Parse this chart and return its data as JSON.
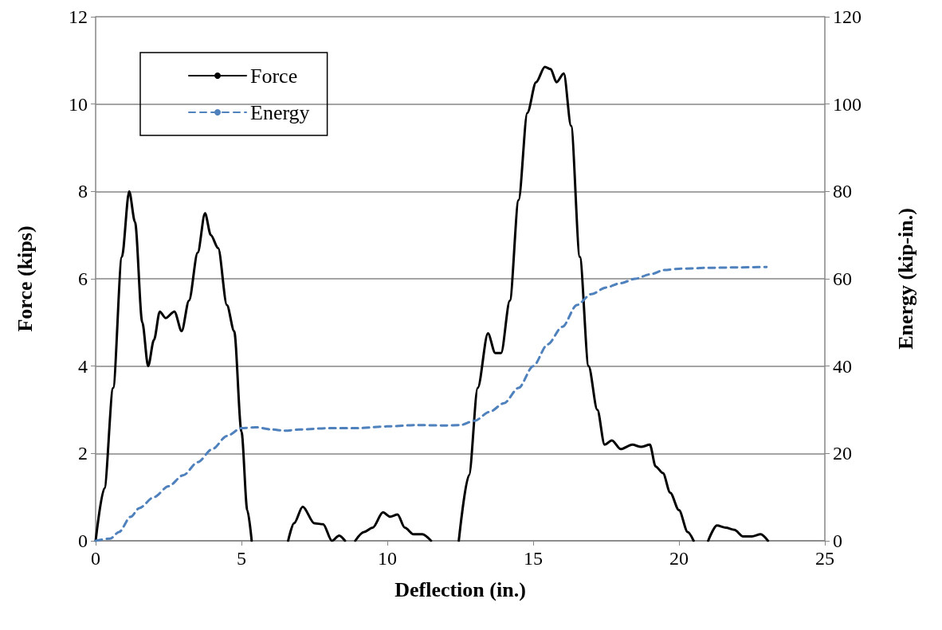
{
  "chart_data": {
    "type": "line",
    "xlabel": "Deflection (in.)",
    "ylabel": "Force (kips)",
    "y2label": "Energy (kip-in.)",
    "xlim": [
      0,
      25
    ],
    "xticks": [
      0,
      5,
      10,
      15,
      20,
      25
    ],
    "ylim": [
      0,
      12
    ],
    "yticks": [
      0,
      2,
      4,
      6,
      8,
      10,
      12
    ],
    "y2lim": [
      0,
      120
    ],
    "y2ticks": [
      0,
      20,
      40,
      60,
      80,
      100,
      120
    ],
    "grid": "y",
    "legend": "top left",
    "marker": "none",
    "series": [
      {
        "name": "Force",
        "color": "#000000",
        "line_style": "solid",
        "x": [
          0,
          0.3,
          0.6,
          0.9,
          1.15,
          1.35,
          1.6,
          1.8,
          2.0,
          2.2,
          2.4,
          2.7,
          2.95,
          3.2,
          3.5,
          3.75,
          3.95,
          4.2,
          4.5,
          4.75,
          5.0,
          5.2,
          5.35,
          6.0,
          6.6,
          6.8,
          7.1,
          7.5,
          7.8,
          8.1,
          8.35,
          8.55,
          8.7,
          8.9,
          9.2,
          9.5,
          9.85,
          10.1,
          10.35,
          10.6,
          10.9,
          11.2,
          11.5,
          12.0,
          12.45,
          12.8,
          13.1,
          13.45,
          13.7,
          13.9,
          14.2,
          14.5,
          14.8,
          15.1,
          15.4,
          15.6,
          15.8,
          16.05,
          16.3,
          16.6,
          16.9,
          17.2,
          17.45,
          17.7,
          18.0,
          18.4,
          18.7,
          19.0,
          19.2,
          19.45,
          19.7,
          20.0,
          20.3,
          20.5,
          20.8,
          21.0,
          21.3,
          21.6,
          21.9,
          22.2,
          22.5,
          22.8,
          23.05
        ],
        "values": [
          0,
          1.2,
          3.5,
          6.5,
          8.0,
          7.3,
          5.0,
          4.0,
          4.6,
          5.25,
          5.1,
          5.25,
          4.8,
          5.5,
          6.6,
          7.5,
          7.0,
          6.7,
          5.4,
          4.8,
          2.5,
          0.7,
          0,
          null,
          0,
          0.4,
          0.78,
          0.4,
          0.38,
          0,
          0.12,
          0,
          null,
          0,
          0.2,
          0.3,
          0.65,
          0.55,
          0.6,
          0.3,
          0.15,
          0.15,
          0,
          null,
          0,
          1.5,
          3.5,
          4.75,
          4.3,
          4.3,
          5.5,
          7.8,
          9.8,
          10.5,
          10.85,
          10.8,
          10.5,
          10.7,
          9.5,
          6.5,
          4.0,
          3.0,
          2.2,
          2.3,
          2.1,
          2.2,
          2.15,
          2.2,
          1.7,
          1.55,
          1.1,
          0.7,
          0.2,
          0,
          null,
          0,
          0.35,
          0.3,
          0.25,
          0.1,
          0.1,
          0.15,
          0
        ]
      },
      {
        "name": "Energy",
        "color": "#4f81bd",
        "line_style": "dashed",
        "axis": "y2",
        "x": [
          0,
          0.5,
          0.8,
          1.2,
          1.5,
          2,
          2.5,
          3,
          3.5,
          4,
          4.5,
          5,
          5.5,
          6,
          6.5,
          7,
          8,
          9,
          10,
          11,
          12,
          12.5,
          13,
          13.5,
          14,
          14.5,
          15,
          15.5,
          16,
          16.5,
          17,
          17.5,
          18,
          18.5,
          19,
          19.5,
          20,
          21,
          22,
          23
        ],
        "values": [
          0,
          0.5,
          2,
          5.5,
          7.5,
          10,
          12.5,
          15,
          18,
          21,
          24,
          25.8,
          26,
          25.5,
          25.2,
          25.5,
          25.8,
          25.8,
          26.2,
          26.5,
          26.4,
          26.5,
          27.5,
          29.5,
          31.5,
          35,
          40,
          45,
          49,
          54,
          56.5,
          58,
          59,
          60,
          61,
          62,
          62.3,
          62.5,
          62.6,
          62.7
        ]
      }
    ]
  }
}
